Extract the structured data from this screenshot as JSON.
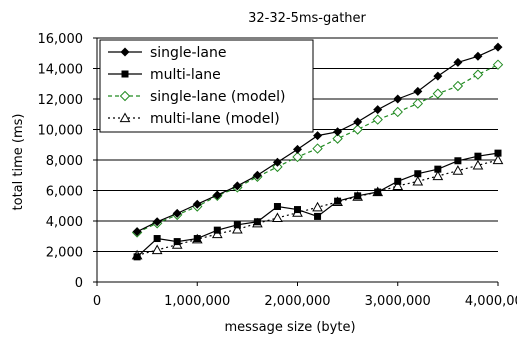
{
  "chart_data": {
    "type": "line",
    "title": "32-32-5ms-gather",
    "xlabel": "message size (byte)",
    "ylabel": "total time (ms)",
    "xlim": [
      0,
      4000000
    ],
    "ylim": [
      0,
      16000
    ],
    "x_ticks": [
      0,
      1000000,
      2000000,
      3000000,
      4000000
    ],
    "x_tick_labels": [
      "0",
      "1,000,000",
      "2,000,000",
      "3,000,000",
      "4,000,000"
    ],
    "y_ticks": [
      0,
      2000,
      4000,
      6000,
      8000,
      10000,
      12000,
      14000,
      16000
    ],
    "y_tick_labels": [
      "0",
      "2,000",
      "4,000",
      "6,000",
      "8,000",
      "10,000",
      "12,000",
      "14,000",
      "16,000"
    ],
    "grid": "horizontal",
    "legend_position": "top-left",
    "series": [
      {
        "name": "single-lane",
        "color": "#000000",
        "marker": "diamond-filled",
        "line": "solid",
        "points": [
          [
            400000,
            3300
          ],
          [
            600000,
            3950
          ],
          [
            800000,
            4500
          ],
          [
            1000000,
            5100
          ],
          [
            1200000,
            5700
          ],
          [
            1400000,
            6300
          ],
          [
            1600000,
            7000
          ],
          [
            1800000,
            7850
          ],
          [
            2000000,
            8700
          ],
          [
            2200000,
            9600
          ],
          [
            2400000,
            9850
          ],
          [
            2600000,
            10500
          ],
          [
            2800000,
            11300
          ],
          [
            3000000,
            12000
          ],
          [
            3200000,
            12500
          ],
          [
            3400000,
            13500
          ],
          [
            3600000,
            14400
          ],
          [
            3800000,
            14800
          ],
          [
            4000000,
            15400
          ]
        ]
      },
      {
        "name": "multi-lane",
        "color": "#000000",
        "marker": "square-filled",
        "line": "solid",
        "points": [
          [
            400000,
            1650
          ],
          [
            600000,
            2850
          ],
          [
            800000,
            2650
          ],
          [
            1000000,
            2850
          ],
          [
            1200000,
            3400
          ],
          [
            1400000,
            3750
          ],
          [
            1600000,
            3950
          ],
          [
            1800000,
            4950
          ],
          [
            2000000,
            4750
          ],
          [
            2200000,
            4300
          ],
          [
            2400000,
            5300
          ],
          [
            2600000,
            5650
          ],
          [
            2800000,
            5900
          ],
          [
            3000000,
            6600
          ],
          [
            3200000,
            7100
          ],
          [
            3400000,
            7400
          ],
          [
            3600000,
            7950
          ],
          [
            3800000,
            8250
          ],
          [
            4000000,
            8450
          ]
        ]
      },
      {
        "name": "single-lane (model)",
        "color": "#228b22",
        "marker": "diamond-open",
        "line": "dashed",
        "points": [
          [
            400000,
            3250
          ],
          [
            600000,
            3850
          ],
          [
            800000,
            4400
          ],
          [
            1000000,
            4950
          ],
          [
            1200000,
            5650
          ],
          [
            1400000,
            6200
          ],
          [
            1600000,
            6900
          ],
          [
            1800000,
            7550
          ],
          [
            2000000,
            8200
          ],
          [
            2200000,
            8750
          ],
          [
            2400000,
            9400
          ],
          [
            2600000,
            10000
          ],
          [
            2800000,
            10650
          ],
          [
            3000000,
            11150
          ],
          [
            3200000,
            11700
          ],
          [
            3400000,
            12350
          ],
          [
            3600000,
            12850
          ],
          [
            3800000,
            13600
          ],
          [
            4000000,
            14250
          ]
        ]
      },
      {
        "name": "multi-lane (model)",
        "color": "#000000",
        "marker": "triangle-open",
        "line": "dotted",
        "points": [
          [
            400000,
            1750
          ],
          [
            600000,
            2100
          ],
          [
            800000,
            2450
          ],
          [
            1000000,
            2800
          ],
          [
            1200000,
            3150
          ],
          [
            1400000,
            3450
          ],
          [
            1600000,
            3850
          ],
          [
            1800000,
            4200
          ],
          [
            2000000,
            4550
          ],
          [
            2200000,
            4900
          ],
          [
            2400000,
            5250
          ],
          [
            2600000,
            5600
          ],
          [
            2800000,
            5900
          ],
          [
            3000000,
            6300
          ],
          [
            3200000,
            6600
          ],
          [
            3400000,
            6950
          ],
          [
            3600000,
            7300
          ],
          [
            3800000,
            7650
          ],
          [
            4000000,
            8000
          ]
        ]
      }
    ]
  }
}
